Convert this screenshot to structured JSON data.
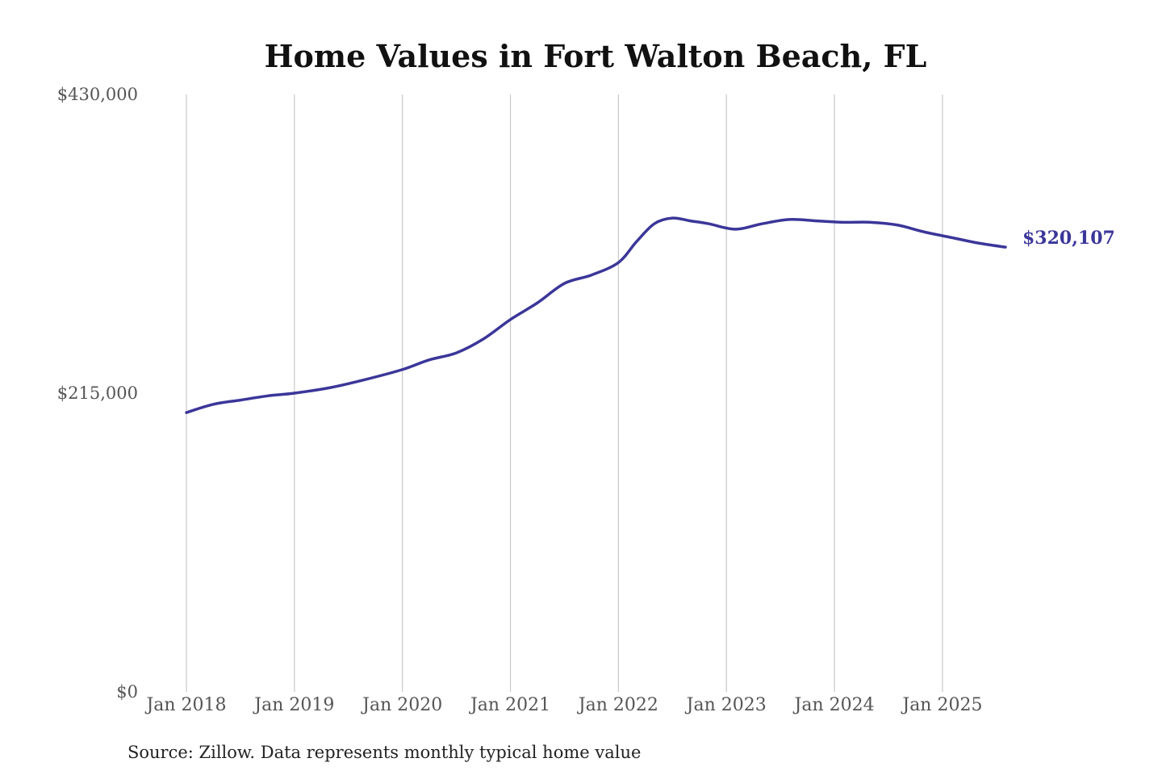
{
  "chart_data": {
    "type": "line",
    "title": "Home Values in Fort Walton Beach, FL",
    "source": "Source: Zillow. Data represents monthly typical home value",
    "xlabel": "",
    "ylabel": "",
    "x_range": [
      "2018-01",
      "2025-08"
    ],
    "ylim": [
      0,
      430000
    ],
    "y_ticks": [
      {
        "value": 0,
        "label": "$0"
      },
      {
        "value": 215000,
        "label": "$215,000"
      },
      {
        "value": 430000,
        "label": "$430,000"
      }
    ],
    "x_ticks": [
      {
        "date": "2018-01",
        "label": "Jan 2018"
      },
      {
        "date": "2019-01",
        "label": "Jan 2019"
      },
      {
        "date": "2020-01",
        "label": "Jan 2020"
      },
      {
        "date": "2021-01",
        "label": "Jan 2021"
      },
      {
        "date": "2022-01",
        "label": "Jan 2022"
      },
      {
        "date": "2023-01",
        "label": "Jan 2023"
      },
      {
        "date": "2024-01",
        "label": "Jan 2024"
      },
      {
        "date": "2025-01",
        "label": "Jan 2025"
      }
    ],
    "grid": {
      "vertical": true,
      "horizontal": false
    },
    "line_color": "#3b3699",
    "end_label": "$320,107",
    "series": [
      {
        "points": [
          {
            "date": "2018-01",
            "value": 201000
          },
          {
            "date": "2018-04",
            "value": 207000
          },
          {
            "date": "2018-07",
            "value": 210000
          },
          {
            "date": "2018-10",
            "value": 213000
          },
          {
            "date": "2019-01",
            "value": 215000
          },
          {
            "date": "2019-05",
            "value": 219000
          },
          {
            "date": "2019-09",
            "value": 225000
          },
          {
            "date": "2020-01",
            "value": 232000
          },
          {
            "date": "2020-04",
            "value": 239000
          },
          {
            "date": "2020-07",
            "value": 244000
          },
          {
            "date": "2020-10",
            "value": 254000
          },
          {
            "date": "2021-01",
            "value": 268000
          },
          {
            "date": "2021-04",
            "value": 280000
          },
          {
            "date": "2021-07",
            "value": 294000
          },
          {
            "date": "2021-10",
            "value": 300000
          },
          {
            "date": "2022-01",
            "value": 309000
          },
          {
            "date": "2022-03",
            "value": 324000
          },
          {
            "date": "2022-05",
            "value": 337000
          },
          {
            "date": "2022-07",
            "value": 341000
          },
          {
            "date": "2022-09",
            "value": 339000
          },
          {
            "date": "2022-11",
            "value": 337000
          },
          {
            "date": "2023-02",
            "value": 333000
          },
          {
            "date": "2023-05",
            "value": 337000
          },
          {
            "date": "2023-08",
            "value": 340000
          },
          {
            "date": "2023-11",
            "value": 339000
          },
          {
            "date": "2024-02",
            "value": 338000
          },
          {
            "date": "2024-05",
            "value": 338000
          },
          {
            "date": "2024-08",
            "value": 336000
          },
          {
            "date": "2024-11",
            "value": 331000
          },
          {
            "date": "2025-02",
            "value": 327000
          },
          {
            "date": "2025-05",
            "value": 323000
          },
          {
            "date": "2025-08",
            "value": 320107
          }
        ]
      }
    ]
  }
}
